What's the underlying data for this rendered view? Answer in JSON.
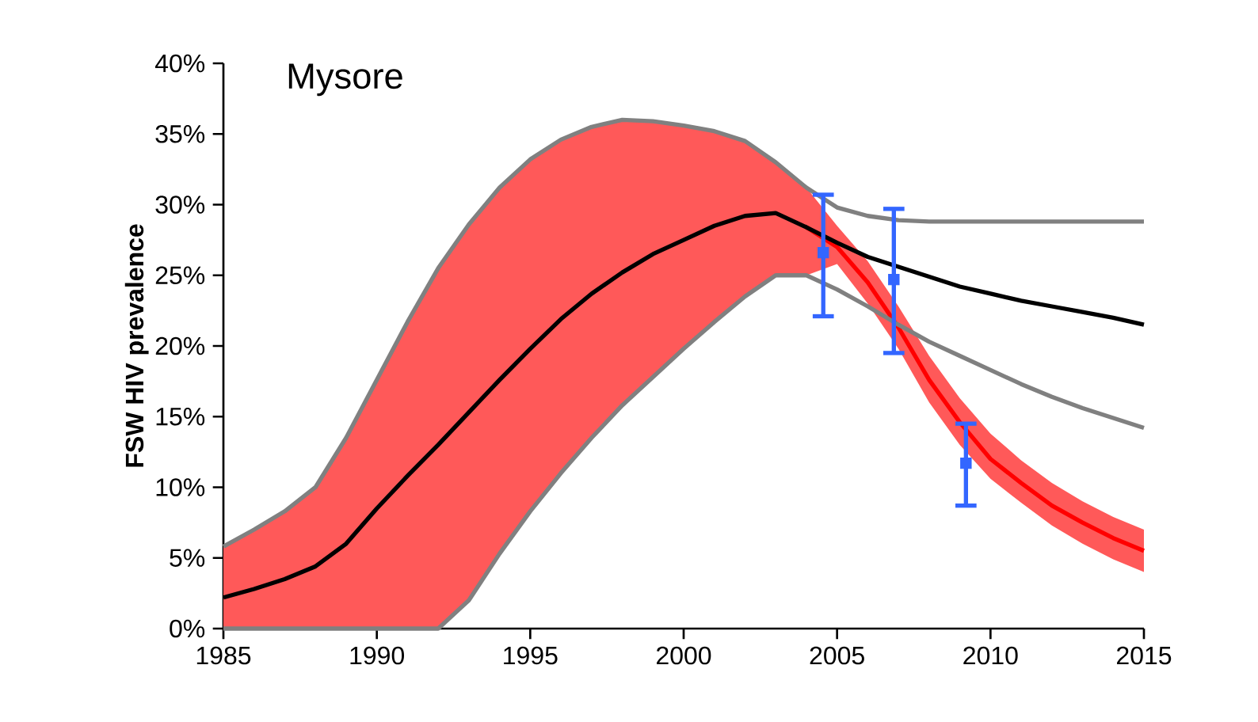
{
  "chart_data": {
    "type": "line",
    "title": "Mysore",
    "ylabel": "FSW HIV prevalence",
    "xlim": [
      1985,
      2015
    ],
    "xticks": [
      1985,
      1990,
      1995,
      2000,
      2005,
      2010,
      2015
    ],
    "ylim": [
      0,
      40
    ],
    "yticks": [
      {
        "value": 0,
        "label": "0%"
      },
      {
        "value": 5,
        "label": "5%"
      },
      {
        "value": 10,
        "label": "10%"
      },
      {
        "value": 15,
        "label": "15%"
      },
      {
        "value": 20,
        "label": "20%"
      },
      {
        "value": 25,
        "label": "25%"
      },
      {
        "value": 30,
        "label": "30%"
      },
      {
        "value": 35,
        "label": "35%"
      },
      {
        "value": 40,
        "label": "40%"
      }
    ],
    "grid": false,
    "series": [
      {
        "color": "#ff0000",
        "x": [
          1985,
          1986,
          1987,
          1988,
          1989,
          1990,
          1991,
          1992,
          1993,
          1994,
          1995,
          1996,
          1997,
          1998,
          1999,
          2000,
          2001,
          2002,
          2003,
          2004,
          2005,
          2006,
          2007,
          2008,
          2009,
          2010,
          2011,
          2012,
          2013,
          2014,
          2015
        ],
        "values": [
          null,
          null,
          null,
          null,
          null,
          null,
          null,
          null,
          null,
          null,
          null,
          null,
          null,
          null,
          null,
          null,
          null,
          null,
          null,
          28.4,
          27.0,
          24.5,
          21.3,
          17.6,
          14.6,
          12.0,
          10.3,
          8.7,
          7.5,
          6.4,
          5.5
        ],
        "upper": [
          5.8,
          7.0,
          8.3,
          10.0,
          13.5,
          17.6,
          21.7,
          25.5,
          28.6,
          31.2,
          33.2,
          34.6,
          35.5,
          36.0,
          35.9,
          35.6,
          35.2,
          34.5,
          33.0,
          31.2,
          28.5,
          26.0,
          22.8,
          19.3,
          16.3,
          13.8,
          11.9,
          10.3,
          9.0,
          7.9,
          7.0
        ],
        "lower": [
          0,
          0,
          0,
          0,
          0,
          0,
          0,
          0,
          2.0,
          5.3,
          8.3,
          11.0,
          13.5,
          15.8,
          17.8,
          19.8,
          21.7,
          23.5,
          25.0,
          25.0,
          25.8,
          23.0,
          19.8,
          16.0,
          13.0,
          10.6,
          8.9,
          7.3,
          6.0,
          4.9,
          4.0
        ]
      },
      {
        "color": "#808080",
        "x": [
          1985,
          1986,
          1987,
          1988,
          1989,
          1990,
          1991,
          1992,
          1993,
          1994,
          1995,
          1996,
          1997,
          1998,
          1999,
          2000,
          2001,
          2002,
          2003,
          2004,
          2005,
          2006,
          2007,
          2008,
          2009,
          2010,
          2011,
          2012,
          2013,
          2014,
          2015
        ],
        "values": [
          5.8,
          7.0,
          8.3,
          10.0,
          13.5,
          17.6,
          21.7,
          25.5,
          28.6,
          31.2,
          33.2,
          34.6,
          35.5,
          36.0,
          35.9,
          35.6,
          35.2,
          34.5,
          33.0,
          31.2,
          29.8,
          29.2,
          28.9,
          28.8,
          28.8,
          28.8,
          28.8,
          28.8,
          28.8,
          28.8,
          28.8
        ]
      },
      {
        "color": "#808080",
        "x": [
          1985,
          1986,
          1987,
          1988,
          1989,
          1990,
          1991,
          1992,
          1993,
          1994,
          1995,
          1996,
          1997,
          1998,
          1999,
          2000,
          2001,
          2002,
          2003,
          2004,
          2005,
          2006,
          2007,
          2008,
          2009,
          2010,
          2011,
          2012,
          2013,
          2014,
          2015
        ],
        "values": [
          0,
          0,
          0,
          0,
          0,
          0,
          0,
          0,
          2.0,
          5.3,
          8.3,
          11.0,
          13.5,
          15.8,
          17.8,
          19.8,
          21.7,
          23.5,
          25.0,
          25.0,
          24.0,
          22.8,
          21.5,
          20.3,
          19.3,
          18.3,
          17.3,
          16.4,
          15.6,
          14.9,
          14.2
        ]
      },
      {
        "color": "#000000",
        "x": [
          1985,
          1986,
          1987,
          1988,
          1989,
          1990,
          1991,
          1992,
          1993,
          1994,
          1995,
          1996,
          1997,
          1998,
          1999,
          2000,
          2001,
          2002,
          2003,
          2004,
          2005,
          2006,
          2007,
          2008,
          2009,
          2010,
          2011,
          2012,
          2013,
          2014,
          2015
        ],
        "values": [
          2.2,
          2.8,
          3.5,
          4.4,
          6.0,
          8.5,
          10.8,
          13.0,
          15.3,
          17.6,
          19.8,
          21.9,
          23.7,
          25.2,
          26.5,
          27.5,
          28.5,
          29.2,
          29.4,
          28.4,
          27.3,
          26.3,
          25.6,
          24.9,
          24.2,
          23.7,
          23.2,
          22.8,
          22.4,
          22.0,
          21.5
        ]
      },
      {
        "type": "scatter",
        "color": "#3366ff",
        "marker": "square",
        "x": [
          2004.55,
          2006.85,
          2009.2
        ],
        "values": [
          26.6,
          24.7,
          11.7
        ],
        "errors": [
          [
            22.1,
            30.7
          ],
          [
            19.5,
            29.7
          ],
          [
            8.7,
            14.5
          ]
        ]
      }
    ]
  }
}
